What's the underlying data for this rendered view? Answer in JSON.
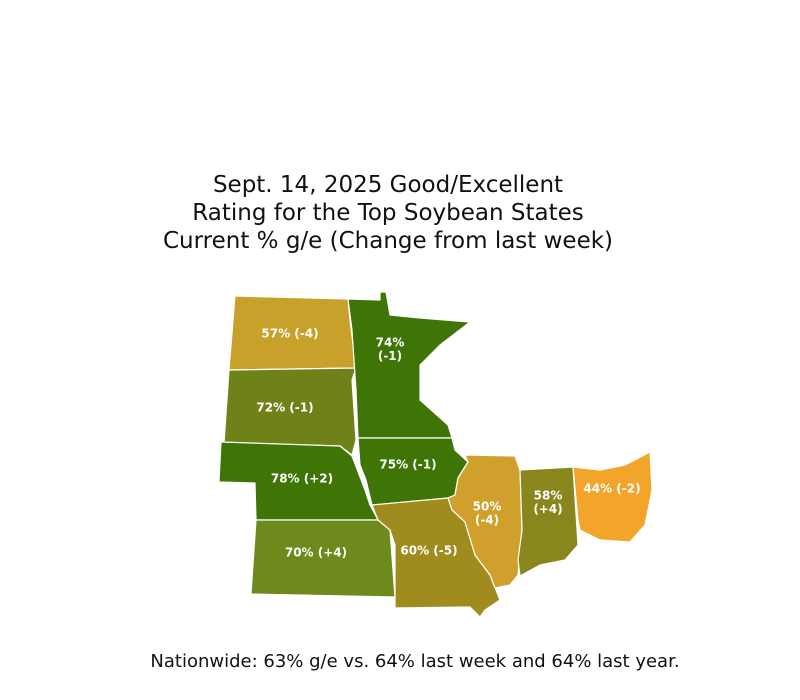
{
  "title": [
    "Sept. 14, 2025 Good/Excellent",
    "Rating for the Top Soybean States",
    "Current % g/e (Change from last week)"
  ],
  "states": [
    {
      "label": "57% (-4)",
      "color": "#c7a12a"
    },
    {
      "label": "72% (-1)",
      "color": "#6e8219"
    },
    {
      "label": "78% (+2)",
      "color": "#3f7506"
    },
    {
      "label": "70% (+4)",
      "color": "#6f8a1c"
    },
    {
      "label": "74% (-1)",
      "color": "#3f7506"
    },
    {
      "label": "75% (-1)",
      "color": "#3f7506"
    },
    {
      "label": "60% (-5)",
      "color": "#a08c1e"
    },
    {
      "label": "50% (-4)",
      "color": "#d0a02c"
    },
    {
      "label": "58% (+4)",
      "color": "#88861d"
    },
    {
      "label": "44% (-2)",
      "color": "#f2a52a"
    }
  ],
  "footer": "Nationwide: 63% g/e vs. 64% last week and 64% last year."
}
